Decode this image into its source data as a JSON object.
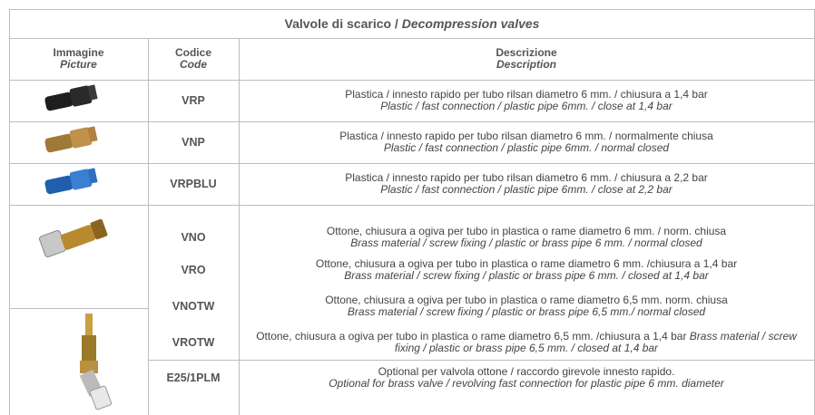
{
  "table": {
    "title": {
      "main": "Valvole di scarico /",
      "italic": "Decompression valves"
    },
    "headers": [
      {
        "it": "Immagine",
        "en": "Picture"
      },
      {
        "it": "Codice",
        "en": "Code"
      },
      {
        "it": "Descrizione",
        "en": "Description"
      }
    ],
    "rows": [
      {
        "code": "VRP",
        "it": "Plastica / innesto rapido per tubo rilsan diametro 6 mm. / chiusura a 1,4 bar",
        "en": "Plastic / fast connection / plastic pipe 6mm. / close at 1,4 bar"
      },
      {
        "code": "VNP",
        "it": "Plastica / innesto rapido per tubo rilsan diametro 6 mm. / normalmente chiusa",
        "en": "Plastic / fast connection / plastic pipe 6mm. / normal closed"
      },
      {
        "code": "VRPBLU",
        "it": "Plastica / innesto rapido per tubo rilsan diametro 6 mm. / chiusura a 2,2 bar",
        "en": "Plastic / fast connection / plastic pipe 6mm. / close at 2,2 bar"
      },
      {
        "code": "VNO",
        "it": "Ottone, chiusura a ogiva  per tubo in plastica o rame diametro 6 mm. / norm. chiusa",
        "en": "Brass material / screw fixing / plastic or brass pipe 6 mm. / normal closed"
      },
      {
        "code": "VRO",
        "it": "Ottone, chiusura a ogiva per tubo in plastica o rame diametro 6 mm. /chiusura a 1,4 bar",
        "en": "Brass material / screw fixing / plastic or brass pipe 6 mm. / closed at 1,4 bar"
      },
      {
        "code": "VNOTW",
        "it": "Ottone, chiusura a ogiva per tubo in plastica o rame diametro 6,5 mm. norm. chiusa",
        "en": "Brass material / screw fixing / plastic or brass pipe 6,5 mm./ normal closed"
      },
      {
        "code": "VROTW",
        "it": "Ottone, chiusura a ogiva per tubo in plastica o rame diametro 6,5 mm. /chiusura a 1,4 bar",
        "en": "Brass material / screw fixing / plastic or brass pipe 6,5 mm. / closed at 1,4 bar"
      },
      {
        "code": "E25/1PLM",
        "it": "Optional per valvola ottone / raccordo girevole innesto rapido.",
        "en": "Optional for brass valve / revolving fast connection for plastic pipe 6 mm. diameter"
      }
    ]
  }
}
